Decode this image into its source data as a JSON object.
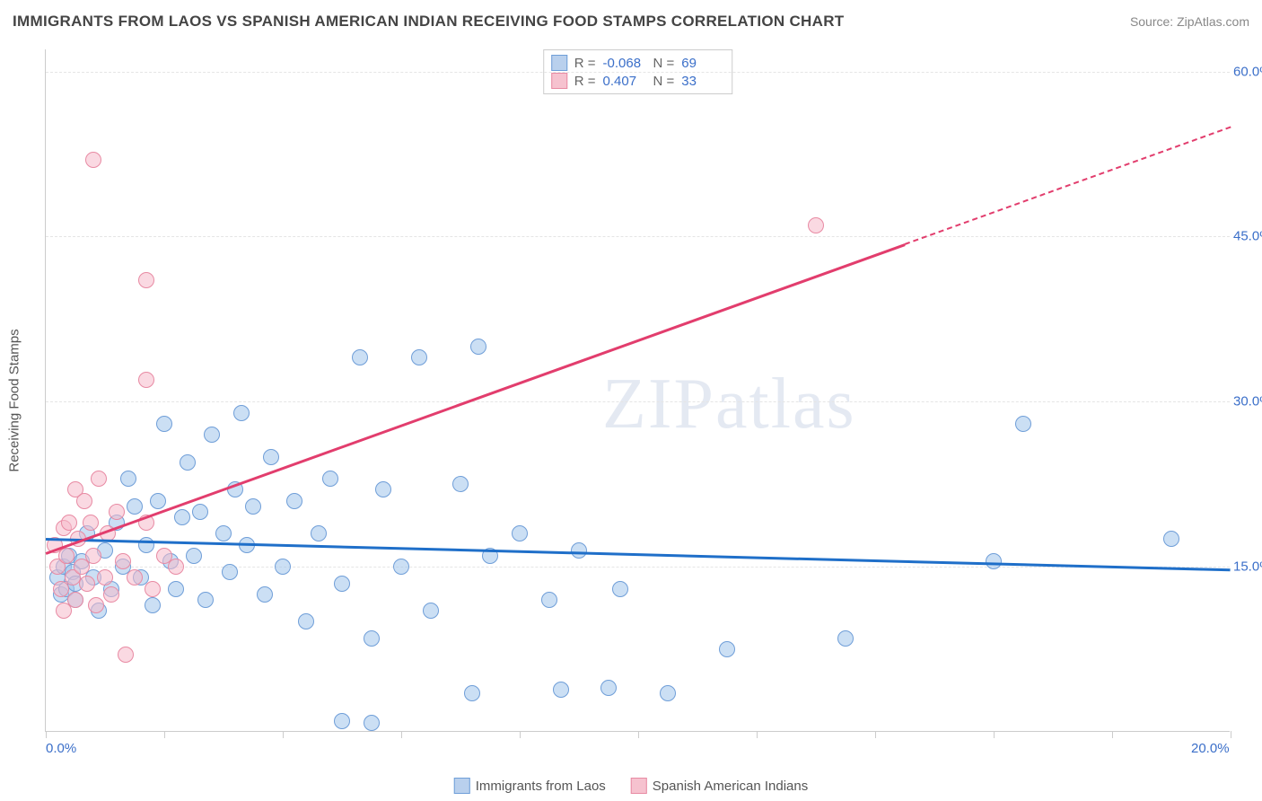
{
  "title": "IMMIGRANTS FROM LAOS VS SPANISH AMERICAN INDIAN RECEIVING FOOD STAMPS CORRELATION CHART",
  "source": "Source: ZipAtlas.com",
  "watermark": "ZIPatlas",
  "axis": {
    "y_title": "Receiving Food Stamps",
    "xlim": [
      0,
      20
    ],
    "ylim": [
      0,
      62
    ],
    "x_ticks": [
      0,
      2,
      4,
      6,
      8,
      10,
      12,
      14,
      16,
      18,
      20
    ],
    "x_labels": {
      "0": "0.0%",
      "20": "20.0%"
    },
    "y_ticks": [
      15,
      30,
      45,
      60
    ],
    "y_labels": {
      "15": "15.0%",
      "30": "30.0%",
      "45": "45.0%",
      "60": "60.0%"
    }
  },
  "legend_stats": [
    {
      "color_fill": "#b9d0ed",
      "color_border": "#6f9ed8",
      "r": "-0.068",
      "n": "69"
    },
    {
      "color_fill": "#f6c2cf",
      "color_border": "#e88aa3",
      "r": " 0.407",
      "n": "33"
    }
  ],
  "bottom_legend": [
    {
      "color_fill": "#b9d0ed",
      "color_border": "#6f9ed8",
      "label": "Immigrants from Laos"
    },
    {
      "color_fill": "#f6c2cf",
      "color_border": "#e88aa3",
      "label": "Spanish American Indians"
    }
  ],
  "series": [
    {
      "name": "laos",
      "point_fill": "rgba(160,196,235,0.55)",
      "point_border": "#6f9ed8",
      "trend_color": "#1f6fc9",
      "trend": {
        "x1": 0,
        "y1": 17.6,
        "x2": 20,
        "y2": 14.8,
        "dash_after_x": null
      },
      "points": [
        [
          0.2,
          14
        ],
        [
          0.25,
          12.5
        ],
        [
          0.3,
          15
        ],
        [
          0.35,
          13
        ],
        [
          0.4,
          16
        ],
        [
          0.45,
          14.5
        ],
        [
          0.5,
          13.5
        ],
        [
          0.5,
          12
        ],
        [
          0.6,
          15.5
        ],
        [
          0.7,
          18
        ],
        [
          0.8,
          14
        ],
        [
          0.9,
          11
        ],
        [
          1.0,
          16.5
        ],
        [
          1.1,
          13
        ],
        [
          1.2,
          19
        ],
        [
          1.3,
          15
        ],
        [
          1.4,
          23
        ],
        [
          1.5,
          20.5
        ],
        [
          1.6,
          14
        ],
        [
          1.7,
          17
        ],
        [
          1.8,
          11.5
        ],
        [
          1.9,
          21
        ],
        [
          2.0,
          28
        ],
        [
          2.1,
          15.5
        ],
        [
          2.2,
          13
        ],
        [
          2.3,
          19.5
        ],
        [
          2.4,
          24.5
        ],
        [
          2.5,
          16
        ],
        [
          2.6,
          20
        ],
        [
          2.7,
          12
        ],
        [
          2.8,
          27
        ],
        [
          3.0,
          18
        ],
        [
          3.1,
          14.5
        ],
        [
          3.2,
          22
        ],
        [
          3.3,
          29
        ],
        [
          3.4,
          17
        ],
        [
          3.5,
          20.5
        ],
        [
          3.7,
          12.5
        ],
        [
          3.8,
          25
        ],
        [
          4.0,
          15
        ],
        [
          4.2,
          21
        ],
        [
          4.4,
          10
        ],
        [
          4.6,
          18
        ],
        [
          4.8,
          23
        ],
        [
          5.0,
          13.5
        ],
        [
          5.3,
          34
        ],
        [
          5.5,
          8.5
        ],
        [
          5.5,
          0.8
        ],
        [
          5.7,
          22
        ],
        [
          6.0,
          15
        ],
        [
          6.3,
          34
        ],
        [
          6.5,
          11
        ],
        [
          7.0,
          22.5
        ],
        [
          7.2,
          3.5
        ],
        [
          7.5,
          16
        ],
        [
          8.0,
          18
        ],
        [
          8.5,
          12
        ],
        [
          8.7,
          3.8
        ],
        [
          9.0,
          16.5
        ],
        [
          9.5,
          4.0
        ],
        [
          9.7,
          13
        ],
        [
          10.5,
          3.5
        ],
        [
          11.5,
          7.5
        ],
        [
          13.5,
          8.5
        ],
        [
          16.0,
          15.5
        ],
        [
          16.5,
          28
        ],
        [
          19.0,
          17.5
        ],
        [
          7.3,
          35
        ],
        [
          5.0,
          1.0
        ]
      ]
    },
    {
      "name": "spanish",
      "point_fill": "rgba(246,186,202,0.55)",
      "point_border": "#e88aa3",
      "trend_color": "#e23d6d",
      "trend": {
        "x1": 0,
        "y1": 16.3,
        "x2": 20,
        "y2": 55,
        "dash_after_x": 14.5
      },
      "points": [
        [
          0.15,
          17
        ],
        [
          0.2,
          15
        ],
        [
          0.25,
          13
        ],
        [
          0.3,
          18.5
        ],
        [
          0.3,
          11
        ],
        [
          0.35,
          16
        ],
        [
          0.4,
          19
        ],
        [
          0.45,
          14
        ],
        [
          0.5,
          12
        ],
        [
          0.5,
          22
        ],
        [
          0.55,
          17.5
        ],
        [
          0.6,
          15
        ],
        [
          0.65,
          21
        ],
        [
          0.7,
          13.5
        ],
        [
          0.75,
          19
        ],
        [
          0.8,
          16
        ],
        [
          0.85,
          11.5
        ],
        [
          0.9,
          23
        ],
        [
          1.0,
          14
        ],
        [
          1.05,
          18
        ],
        [
          1.1,
          12.5
        ],
        [
          1.2,
          20
        ],
        [
          1.3,
          15.5
        ],
        [
          1.35,
          7
        ],
        [
          1.5,
          14
        ],
        [
          1.7,
          19
        ],
        [
          1.8,
          13
        ],
        [
          2.0,
          16
        ],
        [
          2.2,
          15
        ],
        [
          0.8,
          52
        ],
        [
          1.7,
          41
        ],
        [
          1.7,
          32
        ],
        [
          13.0,
          46
        ]
      ]
    }
  ],
  "colors": {
    "grid": "#e5e5e5",
    "tick": "#cccccc",
    "text_axis": "#3b6fc9"
  }
}
